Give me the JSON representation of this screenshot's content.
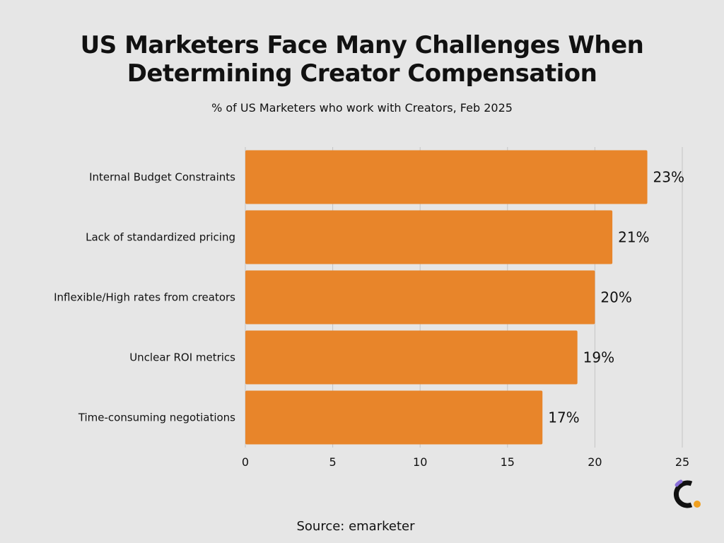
{
  "header": {
    "title_line1": "US Marketers Face Many Challenges When",
    "title_line2": "Determining Creator Compensation",
    "subtitle": "% of US Marketers who work with Creators, Feb 2025"
  },
  "footer": {
    "source": "Source: emarketer"
  },
  "logo": {
    "icon": "brand-c-logo-icon",
    "colors": [
      "#111111",
      "#f0a020",
      "#8a6fd8"
    ]
  },
  "colors": {
    "background": "#e6e6e6",
    "bar": "#e8852a",
    "grid": "#c4c4c4",
    "text": "#111111"
  },
  "chart_data": {
    "type": "bar",
    "orientation": "horizontal",
    "categories": [
      "Internal Budget Constraints",
      "Lack of standardized pricing",
      "Inflexible/High rates from creators",
      "Unclear ROI metrics",
      "Time-consuming negotiations"
    ],
    "values": [
      23,
      21,
      20,
      19,
      17
    ],
    "value_labels": [
      "23%",
      "21%",
      "20%",
      "19%",
      "17%"
    ],
    "xlim": [
      0,
      25
    ],
    "xticks": [
      0,
      5,
      10,
      15,
      20,
      25
    ],
    "xtick_labels": [
      "0",
      "5",
      "10",
      "15",
      "20",
      "25"
    ],
    "grid": true,
    "legend": false
  }
}
